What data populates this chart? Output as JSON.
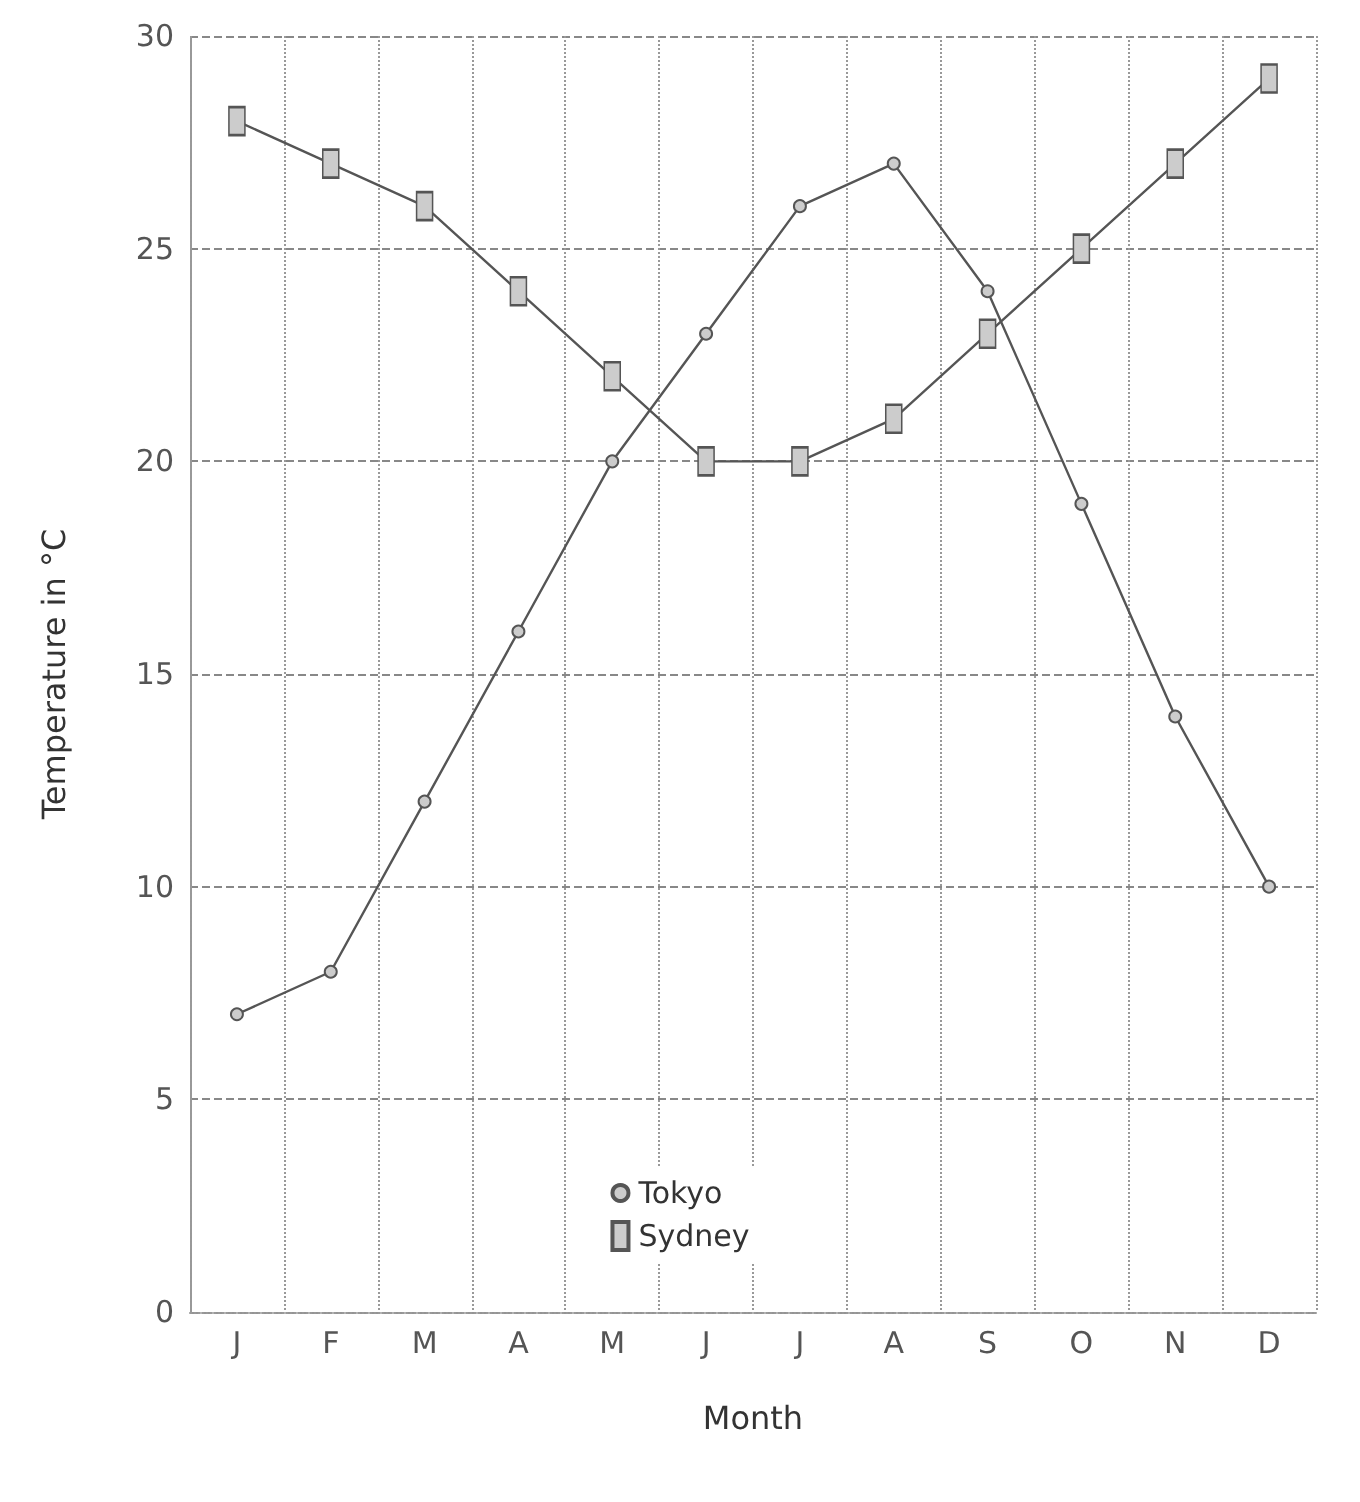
{
  "chart_data": {
    "type": "line",
    "xlabel": "Month",
    "ylabel": "Temperature in °C",
    "categories": [
      "J",
      "F",
      "M",
      "A",
      "M",
      "J",
      "J",
      "A",
      "S",
      "O",
      "N",
      "D"
    ],
    "series": [
      {
        "name": "Tokyo",
        "color": "#555555",
        "marker": "circle",
        "values": [
          7,
          8,
          12,
          16,
          20,
          23,
          26,
          27,
          24,
          19,
          14,
          10
        ]
      },
      {
        "name": "Sydney",
        "color": "#555555",
        "marker": "square",
        "values": [
          28,
          27,
          26,
          24,
          22,
          20,
          20,
          21,
          23,
          25,
          27,
          29
        ]
      }
    ],
    "ylim": [
      0,
      30
    ],
    "yticks": [
      0,
      5,
      10,
      15,
      20,
      25,
      30
    ],
    "grid": true,
    "legend": "bottom"
  }
}
